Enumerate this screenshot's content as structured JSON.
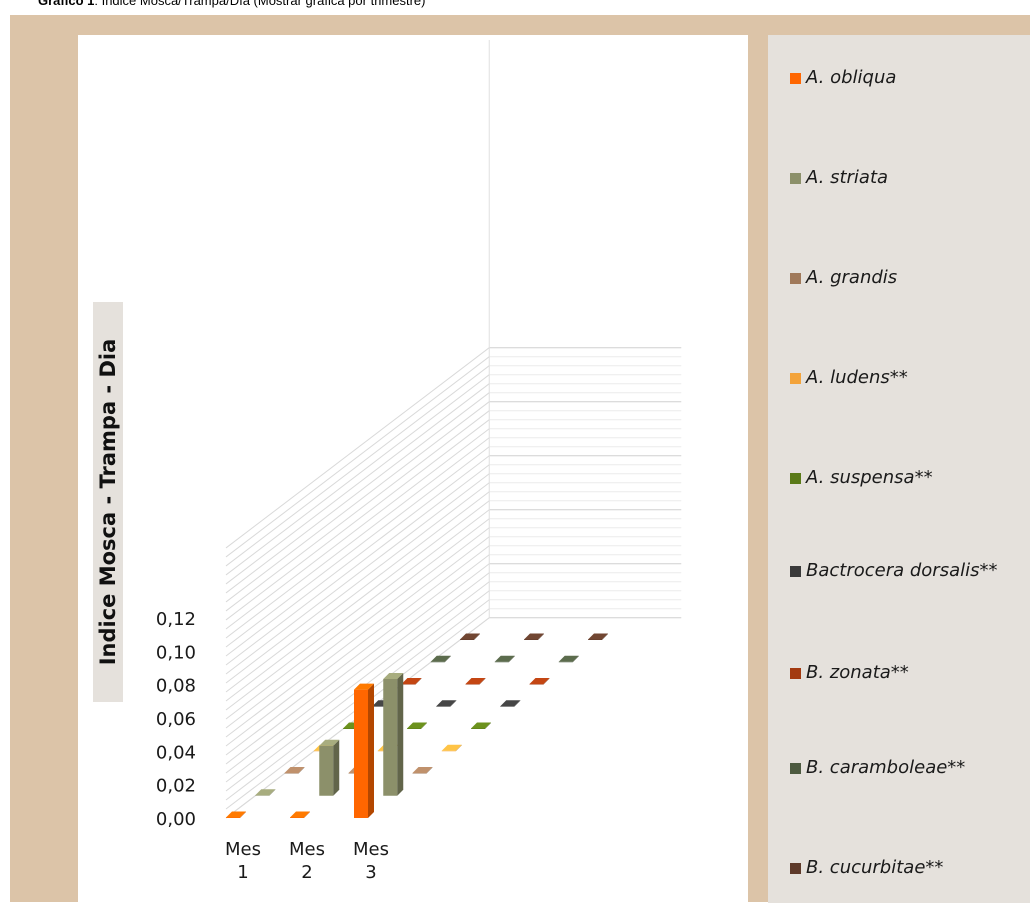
{
  "caption": {
    "bold": "Gráfico 1",
    "rest": ": Índice Mosca/Trampa/Día (Mostrar gráfica por trimestre)"
  },
  "chart_data": {
    "type": "bar",
    "subtype": "3d-column",
    "title": "",
    "ylabel": "Indice Mosca - Trampa - Dia",
    "xlabel": "",
    "ylim": [
      0,
      0.12
    ],
    "yticks": [
      "0,00",
      "0,02",
      "0,04",
      "0,06",
      "0,08",
      "0,10",
      "0,12"
    ],
    "categories": [
      [
        "Mes",
        "1"
      ],
      [
        "Mes",
        "2"
      ],
      [
        "Mes",
        "3"
      ]
    ],
    "grid": true,
    "legend_position": "right",
    "series": [
      {
        "name": "A. obliqua",
        "color": "#ff6600",
        "values": [
          0,
          0,
          0.077
        ]
      },
      {
        "name": "A. striata",
        "color": "#8c906a",
        "values": [
          0,
          0.03,
          0.07
        ]
      },
      {
        "name": "A. grandis",
        "color": "#a0795a",
        "values": [
          0,
          0,
          0
        ]
      },
      {
        "name": "A. ludens**",
        "color": "#f3a33a",
        "values": [
          0,
          0,
          0
        ]
      },
      {
        "name": "A. suspensa**",
        "color": "#5a7a18",
        "values": [
          0,
          0,
          0
        ]
      },
      {
        "name": "Bactrocera dorsalis**",
        "color": "#3a3a3a",
        "values": [
          0,
          0,
          0
        ]
      },
      {
        "name": "B. zonata**",
        "color": "#a33a10",
        "values": [
          0,
          0,
          0
        ]
      },
      {
        "name": "B. caramboleae**",
        "color": "#4d5a40",
        "values": [
          0,
          0,
          0
        ]
      },
      {
        "name": "B. cucurbitae**",
        "color": "#5e3a2a",
        "values": [
          0,
          0,
          0
        ]
      }
    ]
  }
}
